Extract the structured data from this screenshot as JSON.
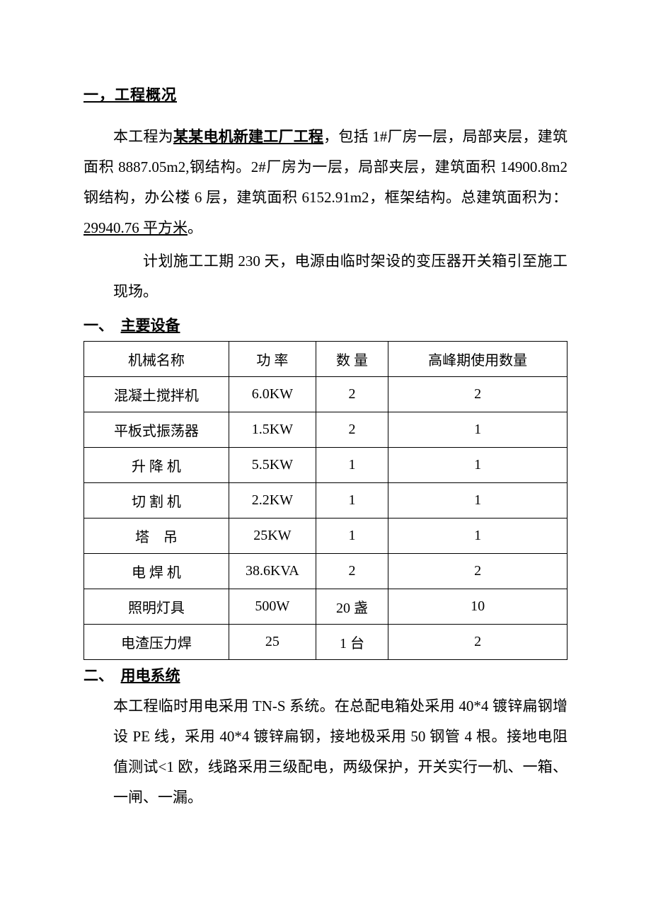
{
  "heading1": "一，工程概况",
  "p1_a": "本工程为",
  "p1_bold": "某某电机新建工厂工程",
  "p1_b": "，包括 1#厂房一层，局部夹层，建筑面积 8887.05m2,钢结构。2#厂房为一层，局部夹层，建筑面积 14900.8m2 钢结构，办公楼 6 层，建筑面积 6152.91m2，框架结构。总建筑面积为：",
  "p1_u": "29940.76 平方米",
  "p1_c": "。",
  "p2": "计划施工工期 230 天，电源由临时架设的变压器开关箱引至施工现场。",
  "sec1_num": "一、",
  "sec1_title": "主要设备",
  "table": {
    "columns": [
      "机械名称",
      "功 率",
      "数 量",
      "高峰期使用数量"
    ],
    "rows": [
      [
        "混凝土搅拌机",
        "6.0KW",
        "2",
        "2"
      ],
      [
        "平板式振荡器",
        "1.5KW",
        "2",
        "1"
      ],
      [
        "升 降 机",
        "5.5KW",
        "1",
        "1"
      ],
      [
        "切 割 机",
        "2.2KW",
        "1",
        "1"
      ],
      [
        "塔　吊",
        "25KW",
        "1",
        "1"
      ],
      [
        "电 焊 机",
        "38.6KVA",
        "2",
        "2"
      ],
      [
        "照明灯具",
        "500W",
        "20 盏",
        "10"
      ],
      [
        "电渣压力焊",
        "25",
        "1 台",
        "2"
      ]
    ]
  },
  "sec2_num": "二、",
  "sec2_title": "用电系统",
  "p3": "本工程临时用电采用 TN-S 系统。在总配电箱处采用 40*4 镀锌扁钢增设 PE 线，采用 40*4 镀锌扁钢，接地极采用 50 钢管 4 根。接地电阻值测试<1 欧，线路采用三级配电，两级保护，开关实行一机、一箱、一闸、一漏。",
  "colors": {
    "text": "#000000",
    "background": "#ffffff",
    "border": "#000000"
  },
  "typography": {
    "body_fontsize": 21,
    "table_fontsize": 20,
    "line_height": 2.05,
    "font_family": "SimSun"
  }
}
